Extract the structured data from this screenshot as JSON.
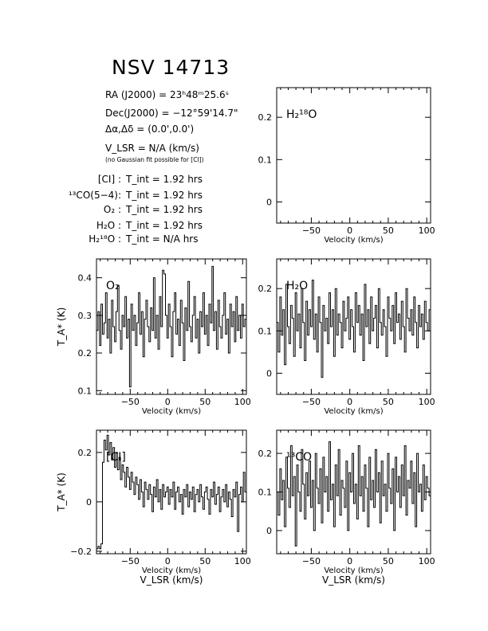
{
  "title": "NSV 14713",
  "info": {
    "ra_label": "RA (J2000) =",
    "ra_value": "23ʰ48ᵐ25.6ˢ",
    "dec_label": "Dec(J2000) =",
    "dec_value": "−12°59'14.7\"",
    "offset_label": "Δα,Δδ =",
    "offset_value": "(0.0',0.0')",
    "vlsr_label": "V_LSR",
    "vlsr_value": "= N/A (km/s)",
    "gauss_note": "(no Gaussian fit possible for [CI])",
    "integration_times": [
      {
        "species": "[CI] :",
        "tint": "T_int = 1.92 hrs"
      },
      {
        "species": "¹³CO(5−4):",
        "tint": "T_int = 1.92 hrs"
      },
      {
        "species": "O₂ :",
        "tint": "T_int = 1.92 hrs"
      },
      {
        "species": "H₂O :",
        "tint": "T_int = 1.92 hrs"
      },
      {
        "species": "H₂¹⁸O :",
        "tint": "T_int = N/A hrs"
      }
    ]
  },
  "colors": {
    "line": "#000000",
    "background": "#ffffff"
  },
  "chart_data": [
    {
      "id": "h218o",
      "type": "line",
      "label": "H₂¹⁸O",
      "xlabel": "Velocity (km/s)",
      "xlabel2": "",
      "ylabel": "",
      "xlim": [
        -95,
        105
      ],
      "ylim": [
        -0.05,
        0.27
      ],
      "xticks": [
        -50,
        0,
        50,
        100
      ],
      "yticks": [
        0,
        0.1,
        0.2
      ],
      "ytick_labels": [
        "0",
        "0.1",
        "0.2"
      ],
      "series": [
        {
          "x": [],
          "y": []
        }
      ]
    },
    {
      "id": "o2",
      "type": "line",
      "label": "O₂",
      "xlabel": "Velocity (km/s)",
      "xlabel2": "",
      "ylabel": "T_A* (K)",
      "xlim": [
        -95,
        105
      ],
      "ylim": [
        0.09,
        0.45
      ],
      "xticks": [
        -50,
        0,
        50,
        100
      ],
      "yticks": [
        0.1,
        0.2,
        0.3,
        0.4
      ],
      "ytick_labels": [
        "0.1",
        "0.2",
        "0.3",
        "0.4"
      ],
      "series": [
        {
          "x": [
            -94,
            -92,
            -90,
            -88,
            -86,
            -84,
            -82,
            -80,
            -78,
            -76,
            -74,
            -72,
            -70,
            -68,
            -66,
            -64,
            -62,
            -60,
            -58,
            -56,
            -54,
            -52,
            -50,
            -48,
            -46,
            -44,
            -42,
            -40,
            -38,
            -36,
            -34,
            -32,
            -30,
            -28,
            -26,
            -24,
            -22,
            -20,
            -18,
            -16,
            -14,
            -12,
            -10,
            -8,
            -6,
            -4,
            -2,
            0,
            2,
            4,
            6,
            8,
            10,
            12,
            14,
            16,
            18,
            20,
            22,
            24,
            26,
            28,
            30,
            32,
            34,
            36,
            38,
            40,
            42,
            44,
            46,
            48,
            50,
            52,
            54,
            56,
            58,
            60,
            62,
            64,
            66,
            68,
            70,
            72,
            74,
            76,
            78,
            80,
            82,
            84,
            86,
            88,
            90,
            92,
            94,
            96,
            98,
            100,
            102,
            104
          ],
          "y": [
            0.26,
            0.31,
            0.22,
            0.33,
            0.25,
            0.28,
            0.36,
            0.24,
            0.29,
            0.2,
            0.34,
            0.27,
            0.23,
            0.31,
            0.38,
            0.26,
            0.21,
            0.3,
            0.27,
            0.35,
            0.24,
            0.29,
            0.11,
            0.33,
            0.26,
            0.3,
            0.22,
            0.28,
            0.36,
            0.25,
            0.31,
            0.19,
            0.29,
            0.34,
            0.27,
            0.23,
            0.32,
            0.26,
            0.4,
            0.24,
            0.3,
            0.21,
            0.35,
            0.27,
            0.42,
            0.41,
            0.3,
            0.24,
            0.33,
            0.27,
            0.19,
            0.31,
            0.36,
            0.25,
            0.29,
            0.22,
            0.34,
            0.28,
            0.18,
            0.32,
            0.26,
            0.39,
            0.27,
            0.23,
            0.3,
            0.35,
            0.24,
            0.29,
            0.2,
            0.31,
            0.27,
            0.36,
            0.25,
            0.3,
            0.22,
            0.33,
            0.28,
            0.43,
            0.26,
            0.31,
            0.21,
            0.34,
            0.27,
            0.24,
            0.3,
            0.36,
            0.25,
            0.29,
            0.2,
            0.33,
            0.27,
            0.31,
            0.23,
            0.35,
            0.26,
            0.3,
            0.24,
            0.33,
            0.27,
            0.29
          ]
        }
      ]
    },
    {
      "id": "h2o",
      "type": "line",
      "label": "H₂O",
      "xlabel": "Velocity (km/s)",
      "xlabel2": "",
      "ylabel": "",
      "xlim": [
        -95,
        105
      ],
      "ylim": [
        -0.05,
        0.27
      ],
      "xticks": [
        -50,
        0,
        50,
        100
      ],
      "yticks": [
        0,
        0.1,
        0.2
      ],
      "ytick_labels": [
        "0",
        "0.1",
        "0.2"
      ],
      "series": [
        {
          "x": [
            -94,
            -92,
            -90,
            -88,
            -86,
            -84,
            -82,
            -80,
            -78,
            -76,
            -74,
            -72,
            -70,
            -68,
            -66,
            -64,
            -62,
            -60,
            -58,
            -56,
            -54,
            -52,
            -50,
            -48,
            -46,
            -44,
            -42,
            -40,
            -38,
            -36,
            -34,
            -32,
            -30,
            -28,
            -26,
            -24,
            -22,
            -20,
            -18,
            -16,
            -14,
            -12,
            -10,
            -8,
            -6,
            -4,
            -2,
            0,
            2,
            4,
            6,
            8,
            10,
            12,
            14,
            16,
            18,
            20,
            22,
            24,
            26,
            28,
            30,
            32,
            34,
            36,
            38,
            40,
            42,
            44,
            46,
            48,
            50,
            52,
            54,
            56,
            58,
            60,
            62,
            64,
            66,
            68,
            70,
            72,
            74,
            76,
            78,
            80,
            82,
            84,
            86,
            88,
            90,
            92,
            94,
            96,
            98,
            100,
            102,
            104
          ],
          "y": [
            0.12,
            0.05,
            0.18,
            0.09,
            0.15,
            0.02,
            0.21,
            0.11,
            0.07,
            0.16,
            0.13,
            0.04,
            0.19,
            0.1,
            0.14,
            0.06,
            0.2,
            0.12,
            0.03,
            0.17,
            0.09,
            0.15,
            0.11,
            0.22,
            0.08,
            0.14,
            0.05,
            0.18,
            0.12,
            -0.01,
            0.16,
            0.1,
            0.13,
            0.07,
            0.19,
            0.11,
            0.15,
            0.04,
            0.2,
            0.09,
            0.14,
            0.12,
            0.06,
            0.17,
            0.1,
            0.13,
            0.18,
            0.08,
            0.15,
            0.11,
            0.05,
            0.19,
            0.12,
            0.16,
            0.09,
            0.14,
            0.03,
            0.21,
            0.11,
            0.15,
            0.07,
            0.18,
            0.1,
            0.13,
            0.16,
            0.06,
            0.2,
            0.12,
            0.09,
            0.15,
            0.11,
            0.04,
            0.18,
            0.13,
            0.1,
            0.16,
            0.07,
            0.19,
            0.12,
            0.14,
            0.08,
            0.17,
            0.11,
            0.05,
            0.2,
            0.13,
            0.1,
            0.15,
            0.09,
            0.18,
            0.12,
            0.06,
            0.16,
            0.11,
            0.14,
            0.08,
            0.17,
            0.12,
            0.1,
            0.15
          ]
        }
      ]
    },
    {
      "id": "ci",
      "type": "line",
      "label": "[CI]",
      "xlabel": "Velocity (km/s)",
      "xlabel2": "V_LSR (km/s)",
      "ylabel": "T_A* (K)",
      "xlim": [
        -95,
        105
      ],
      "ylim": [
        -0.21,
        0.29
      ],
      "xticks": [
        -50,
        0,
        50,
        100
      ],
      "yticks": [
        -0.2,
        0,
        0.2
      ],
      "ytick_labels": [
        "−0.2",
        "0",
        "0.2"
      ],
      "series": [
        {
          "x": [
            -94,
            -92,
            -90,
            -88,
            -86,
            -84,
            -82,
            -80,
            -78,
            -76,
            -74,
            -72,
            -70,
            -68,
            -66,
            -64,
            -62,
            -60,
            -58,
            -56,
            -54,
            -52,
            -50,
            -48,
            -46,
            -44,
            -42,
            -40,
            -38,
            -36,
            -34,
            -32,
            -30,
            -28,
            -26,
            -24,
            -22,
            -20,
            -18,
            -16,
            -14,
            -12,
            -10,
            -8,
            -6,
            -4,
            -2,
            0,
            2,
            4,
            6,
            8,
            10,
            12,
            14,
            16,
            18,
            20,
            22,
            24,
            26,
            28,
            30,
            32,
            34,
            36,
            38,
            40,
            42,
            44,
            46,
            48,
            50,
            52,
            54,
            56,
            58,
            60,
            62,
            64,
            66,
            68,
            70,
            72,
            74,
            76,
            78,
            80,
            82,
            84,
            86,
            88,
            90,
            92,
            94,
            96,
            98,
            100,
            102,
            104
          ],
          "y": [
            -0.19,
            -0.18,
            -0.19,
            -0.17,
            0.16,
            0.25,
            0.21,
            0.27,
            0.19,
            0.24,
            0.17,
            0.22,
            0.14,
            0.2,
            0.13,
            0.18,
            0.09,
            0.15,
            0.12,
            0.06,
            0.14,
            0.1,
            0.05,
            0.12,
            0.08,
            0.03,
            0.1,
            0.07,
            0.01,
            0.09,
            0.04,
            -0.02,
            0.08,
            0.05,
            0.01,
            0.07,
            0.03,
            -0.04,
            0.06,
            0.02,
            0.09,
            0.0,
            0.05,
            -0.03,
            0.07,
            0.02,
            0.04,
            0.06,
            -0.01,
            0.05,
            0.02,
            0.08,
            -0.03,
            0.04,
            0.06,
            0.0,
            0.03,
            -0.05,
            0.05,
            0.02,
            0.07,
            -0.02,
            0.04,
            0.01,
            0.06,
            -0.04,
            0.03,
            0.05,
            0.0,
            0.07,
            0.02,
            -0.03,
            0.04,
            0.06,
            0.01,
            -0.05,
            0.05,
            0.02,
            0.08,
            -0.01,
            0.03,
            0.06,
            -0.04,
            0.02,
            0.05,
            0.0,
            0.07,
            -0.02,
            0.04,
            0.01,
            -0.06,
            0.05,
            0.02,
            0.08,
            -0.12,
            0.03,
            0.06,
            0.0,
            0.12,
            0.04
          ]
        }
      ]
    },
    {
      "id": "13co",
      "type": "line",
      "label": "¹³CO",
      "xlabel": "Velocity (km/s)",
      "xlabel2": "V_LSR (km/s)",
      "ylabel": "",
      "xlim": [
        -95,
        105
      ],
      "ylim": [
        -0.06,
        0.26
      ],
      "xticks": [
        -50,
        0,
        50,
        100
      ],
      "yticks": [
        0,
        0.1,
        0.2
      ],
      "ytick_labels": [
        "0",
        "0.1",
        "0.2"
      ],
      "series": [
        {
          "x": [
            -94,
            -92,
            -90,
            -88,
            -86,
            -84,
            -82,
            -80,
            -78,
            -76,
            -74,
            -72,
            -70,
            -68,
            -66,
            -64,
            -62,
            -60,
            -58,
            -56,
            -54,
            -52,
            -50,
            -48,
            -46,
            -44,
            -42,
            -40,
            -38,
            -36,
            -34,
            -32,
            -30,
            -28,
            -26,
            -24,
            -22,
            -20,
            -18,
            -16,
            -14,
            -12,
            -10,
            -8,
            -6,
            -4,
            -2,
            0,
            2,
            4,
            6,
            8,
            10,
            12,
            14,
            16,
            18,
            20,
            22,
            24,
            26,
            28,
            30,
            32,
            34,
            36,
            38,
            40,
            42,
            44,
            46,
            48,
            50,
            52,
            54,
            56,
            58,
            60,
            62,
            64,
            66,
            68,
            70,
            72,
            74,
            76,
            78,
            80,
            82,
            84,
            86,
            88,
            90,
            92,
            94,
            96,
            98,
            100,
            102,
            104
          ],
          "y": [
            0.1,
            0.04,
            0.16,
            0.08,
            0.13,
            0.01,
            0.19,
            0.11,
            0.06,
            0.22,
            0.09,
            0.14,
            -0.04,
            0.17,
            0.1,
            0.05,
            0.21,
            0.12,
            0.03,
            0.15,
            0.09,
            0.18,
            0.06,
            0.13,
            0.0,
            0.2,
            0.11,
            0.07,
            0.16,
            0.02,
            0.19,
            0.1,
            0.14,
            0.05,
            0.23,
            0.08,
            0.12,
            0.01,
            0.17,
            0.09,
            0.21,
            0.04,
            0.13,
            0.11,
            0.06,
            0.18,
            0.0,
            0.15,
            0.1,
            0.2,
            0.07,
            0.12,
            0.03,
            0.22,
            0.09,
            0.14,
            0.05,
            0.17,
            0.11,
            0.01,
            0.19,
            0.08,
            0.13,
            0.06,
            0.21,
            0.1,
            0.15,
            0.02,
            0.18,
            0.09,
            0.12,
            0.05,
            0.2,
            0.11,
            0.07,
            0.16,
            0.0,
            0.19,
            0.1,
            0.14,
            0.06,
            0.17,
            0.09,
            0.22,
            0.04,
            0.13,
            0.11,
            0.18,
            0.07,
            0.15,
            0.01,
            0.2,
            0.1,
            0.12,
            0.05,
            0.17,
            0.08,
            0.14,
            0.11,
            0.09
          ]
        }
      ]
    }
  ]
}
